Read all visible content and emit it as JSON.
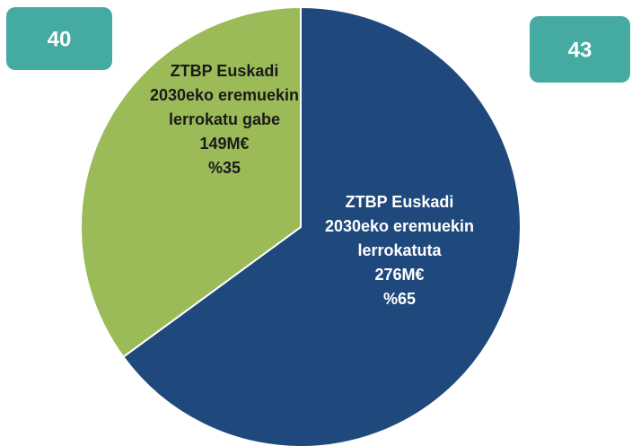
{
  "chart_data": {
    "type": "pie",
    "categories": [
      "ZTBP Euskadi 2030eko eremuekin lerrokatuta",
      "ZTBP Euskadi 2030eko eremuekin lerrokatu gabe"
    ],
    "values": [
      276,
      149
    ],
    "value_labels": [
      "276M€",
      "149M€"
    ],
    "percents": [
      65,
      35
    ],
    "percent_labels": [
      "%65",
      "%35"
    ],
    "colors": [
      "#1f497d",
      "#9bbb59"
    ],
    "badges": [
      40,
      43
    ],
    "badge_color": "#45aaa2"
  }
}
